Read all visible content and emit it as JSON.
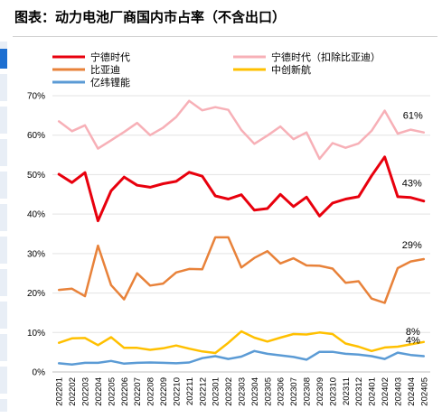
{
  "title": "图表：动力电池厂商国内市占率（不含出口）",
  "chart_data": {
    "type": "line",
    "title": "图表：动力电池厂商国内市占率（不含出口）",
    "xlabel": "",
    "ylabel": "",
    "ylim": [
      0,
      70
    ],
    "yticks": [
      "0%",
      "10%",
      "20%",
      "30%",
      "40%",
      "50%",
      "60%",
      "70%"
    ],
    "grid": true,
    "legend_position": "top",
    "categories": [
      "202201",
      "202202",
      "202203",
      "202204",
      "202205",
      "202206",
      "202207",
      "202208",
      "202209",
      "202210",
      "202211",
      "202212",
      "202301",
      "202302",
      "202303",
      "202304",
      "202305",
      "202306",
      "202307",
      "202308",
      "202309",
      "202310",
      "202311",
      "202312",
      "202401",
      "202402",
      "202403",
      "202404",
      "202405"
    ],
    "series": [
      {
        "name": "宁德时代",
        "color": "#e8000d",
        "width": 3,
        "values": [
          50.1,
          48.0,
          50.5,
          38.3,
          45.9,
          49.4,
          47.3,
          46.8,
          47.7,
          48.3,
          50.6,
          49.6,
          44.6,
          43.8,
          44.9,
          41.0,
          41.4,
          45.0,
          41.9,
          44.3,
          39.5,
          42.8,
          43.8,
          44.4,
          49.7,
          54.5,
          44.4,
          44.2,
          43.3
        ]
      },
      {
        "name": "宁德时代（扣除比亚迪）",
        "color": "#f7b0b7",
        "width": 2.5,
        "values": [
          63.5,
          61.0,
          62.5,
          56.6,
          58.7,
          60.8,
          63.1,
          60.0,
          61.9,
          64.6,
          68.7,
          66.3,
          67.1,
          66.4,
          61.3,
          57.8,
          59.9,
          62.2,
          59.0,
          60.7,
          54.0,
          58.0,
          56.8,
          57.9,
          61.1,
          66.2,
          60.4,
          61.4,
          60.7
        ]
      },
      {
        "name": "比亚迪",
        "color": "#e8823a",
        "width": 2.5,
        "values": [
          20.8,
          21.1,
          19.2,
          32.0,
          22.0,
          18.4,
          25.0,
          21.9,
          22.4,
          25.2,
          26.1,
          26.0,
          34.1,
          34.1,
          26.5,
          28.9,
          30.6,
          27.5,
          28.8,
          27.0,
          26.9,
          26.2,
          22.6,
          23.0,
          18.6,
          17.5,
          26.3,
          28.0,
          28.6
        ]
      },
      {
        "name": "中创新航",
        "color": "#ffc000",
        "width": 2.5,
        "values": [
          7.4,
          8.5,
          8.6,
          6.8,
          8.8,
          6.1,
          6.1,
          5.6,
          6.0,
          6.7,
          5.9,
          5.2,
          4.8,
          7.4,
          10.3,
          8.7,
          7.7,
          8.7,
          9.6,
          9.5,
          10.0,
          9.6,
          7.2,
          6.4,
          5.3,
          6.2,
          6.4,
          7.0,
          7.6
        ]
      },
      {
        "name": "亿纬锂能",
        "color": "#5b9bd5",
        "width": 2.5,
        "values": [
          2.2,
          1.9,
          2.3,
          2.3,
          2.8,
          2.1,
          2.3,
          2.4,
          2.3,
          2.2,
          2.4,
          3.5,
          4.0,
          3.3,
          3.9,
          5.3,
          4.6,
          4.2,
          3.8,
          3.1,
          5.1,
          5.1,
          4.6,
          4.4,
          4.0,
          3.3,
          4.9,
          4.3,
          4.0
        ]
      }
    ],
    "annotations": [
      {
        "text": "61%",
        "series": "宁德时代（扣除比亚迪）"
      },
      {
        "text": "43%",
        "series": "宁德时代"
      },
      {
        "text": "29%",
        "series": "比亚迪"
      },
      {
        "text": "8%",
        "series": "中创新航"
      },
      {
        "text": "4%",
        "series": "亿纬锂能"
      }
    ]
  }
}
